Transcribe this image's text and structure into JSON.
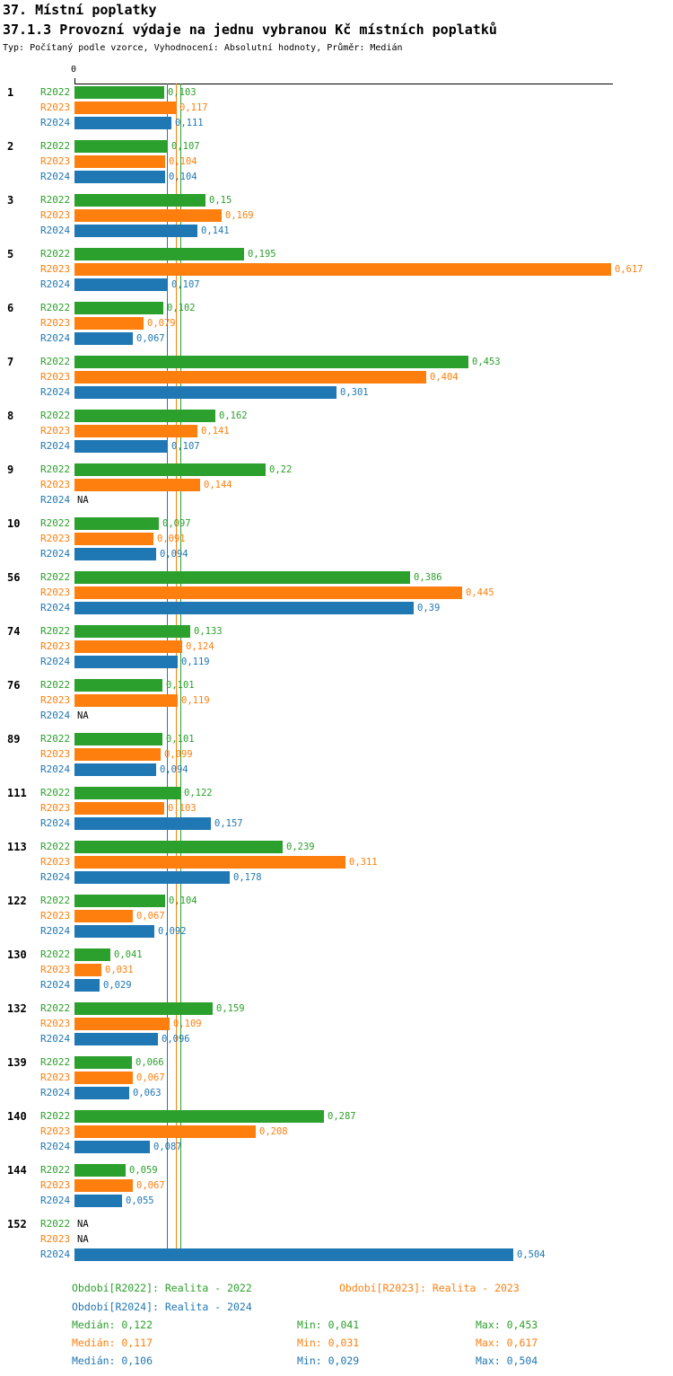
{
  "header": {
    "title": "37. Místní poplatky",
    "subtitle": "37.1.3 Provozní výdaje na jednu vybranou Kč místních poplatků",
    "meta": "Typ: Počítaný podle vzorce, Vyhodnocení: Absolutní hodnoty, Průměr: Medián"
  },
  "chart_data": {
    "type": "bar",
    "orientation": "horizontal",
    "title": "37.1.3 Provozní výdaje na jednu vybranou Kč místních poplatků",
    "x_axis": {
      "origin_label": "0",
      "range": [
        0,
        0.66
      ],
      "gridlines": false
    },
    "series": [
      "R2022",
      "R2023",
      "R2024"
    ],
    "series_colors": [
      "#2ca02c",
      "#ff7f0e",
      "#1f77b4"
    ],
    "na_text": "NA",
    "median_lines": [
      0.122,
      0.117,
      0.106
    ],
    "groups": [
      {
        "id": "1",
        "values": [
          0.103,
          0.117,
          0.111
        ],
        "value_labels": [
          "0,103",
          "0,117",
          "0,111"
        ]
      },
      {
        "id": "2",
        "values": [
          0.107,
          0.104,
          0.104
        ],
        "value_labels": [
          "0,107",
          "0,104",
          "0,104"
        ]
      },
      {
        "id": "3",
        "values": [
          0.15,
          0.169,
          0.141
        ],
        "value_labels": [
          "0,15",
          "0,169",
          "0,141"
        ]
      },
      {
        "id": "5",
        "values": [
          0.195,
          0.617,
          0.107
        ],
        "value_labels": [
          "0,195",
          "0,617",
          "0,107"
        ]
      },
      {
        "id": "6",
        "values": [
          0.102,
          0.079,
          0.067
        ],
        "value_labels": [
          "0,102",
          "0,079",
          "0,067"
        ]
      },
      {
        "id": "7",
        "values": [
          0.453,
          0.404,
          0.301
        ],
        "value_labels": [
          "0,453",
          "0,404",
          "0,301"
        ]
      },
      {
        "id": "8",
        "values": [
          0.162,
          0.141,
          0.107
        ],
        "value_labels": [
          "0,162",
          "0,141",
          "0,107"
        ]
      },
      {
        "id": "9",
        "values": [
          0.22,
          0.144,
          null
        ],
        "value_labels": [
          "0,22",
          "0,144",
          "NA"
        ]
      },
      {
        "id": "10",
        "values": [
          0.097,
          0.091,
          0.094
        ],
        "value_labels": [
          "0,097",
          "0,091",
          "0,094"
        ]
      },
      {
        "id": "56",
        "values": [
          0.386,
          0.445,
          0.39
        ],
        "value_labels": [
          "0,386",
          "0,445",
          "0,39"
        ]
      },
      {
        "id": "74",
        "values": [
          0.133,
          0.124,
          0.119
        ],
        "value_labels": [
          "0,133",
          "0,124",
          "0,119"
        ]
      },
      {
        "id": "76",
        "values": [
          0.101,
          0.119,
          null
        ],
        "value_labels": [
          "0,101",
          "0,119",
          "NA"
        ]
      },
      {
        "id": "89",
        "values": [
          0.101,
          0.099,
          0.094
        ],
        "value_labels": [
          "0,101",
          "0,099",
          "0,094"
        ]
      },
      {
        "id": "111",
        "values": [
          0.122,
          0.103,
          0.157
        ],
        "value_labels": [
          "0,122",
          "0,103",
          "0,157"
        ]
      },
      {
        "id": "113",
        "values": [
          0.239,
          0.311,
          0.178
        ],
        "value_labels": [
          "0,239",
          "0,311",
          "0,178"
        ]
      },
      {
        "id": "122",
        "values": [
          0.104,
          0.067,
          0.092
        ],
        "value_labels": [
          "0,104",
          "0,067",
          "0,092"
        ]
      },
      {
        "id": "130",
        "values": [
          0.041,
          0.031,
          0.029
        ],
        "value_labels": [
          "0,041",
          "0,031",
          "0,029"
        ]
      },
      {
        "id": "132",
        "values": [
          0.159,
          0.109,
          0.096
        ],
        "value_labels": [
          "0,159",
          "0,109",
          "0,096"
        ]
      },
      {
        "id": "139",
        "values": [
          0.066,
          0.067,
          0.063
        ],
        "value_labels": [
          "0,066",
          "0,067",
          "0,063"
        ]
      },
      {
        "id": "140",
        "values": [
          0.287,
          0.208,
          0.087
        ],
        "value_labels": [
          "0,287",
          "0,208",
          "0,087"
        ]
      },
      {
        "id": "144",
        "values": [
          0.059,
          0.067,
          0.055
        ],
        "value_labels": [
          "0,059",
          "0,067",
          "0,055"
        ]
      },
      {
        "id": "152",
        "values": [
          null,
          null,
          0.504
        ],
        "value_labels": [
          "NA",
          "NA",
          "0,504"
        ]
      }
    ]
  },
  "legend": {
    "items": [
      {
        "label": "Období[R2022]: Realita - 2022"
      },
      {
        "label": "Období[R2023]: Realita - 2023"
      },
      {
        "label": "Období[R2024]: Realita - 2024"
      }
    ],
    "stats": [
      {
        "median": "Medián: 0,122",
        "min": "Min: 0,041",
        "max": "Max: 0,453"
      },
      {
        "median": "Medián: 0,117",
        "min": "Min: 0,031",
        "max": "Max: 0,617"
      },
      {
        "median": "Medián: 0,106",
        "min": "Min: 0,029",
        "max": "Max: 0,504"
      }
    ]
  }
}
